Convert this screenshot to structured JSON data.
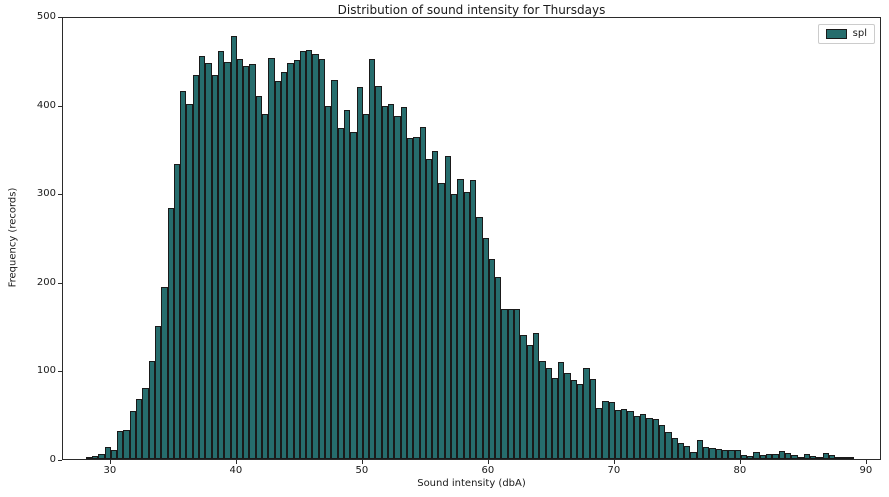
{
  "figure": {
    "background": "#ffffff"
  },
  "chart_data": {
    "type": "bar",
    "subtype": "histogram",
    "title": "Distribution of sound intensity for Thursdays",
    "xlabel": "Sound intensity (dbA)",
    "ylabel": "Frequency (records)",
    "legend": {
      "label": "spl",
      "position": "upper right"
    },
    "bar_color": "#266d6d",
    "bar_edge_color": "#1a1a1a",
    "grid": false,
    "xlim": [
      26.2,
      91.2
    ],
    "ylim": [
      0,
      500
    ],
    "x_ticks": [
      30,
      40,
      50,
      60,
      70,
      80,
      90
    ],
    "y_ticks": [
      0,
      100,
      200,
      300,
      400,
      500
    ],
    "bin_start": 28.0,
    "bin_width": 0.5,
    "values": [
      2,
      3,
      6,
      14,
      10,
      32,
      33,
      54,
      68,
      80,
      111,
      150,
      194,
      283,
      333,
      415,
      401,
      433,
      455,
      447,
      433,
      460,
      448,
      478,
      452,
      444,
      446,
      410,
      389,
      453,
      427,
      437,
      447,
      450,
      460,
      462,
      457,
      451,
      399,
      428,
      374,
      394,
      369,
      420,
      389,
      452,
      421,
      399,
      401,
      387,
      397,
      362,
      364,
      375,
      339,
      348,
      312,
      342,
      299,
      316,
      301,
      315,
      273,
      250,
      226,
      205,
      169,
      169,
      169,
      140,
      129,
      142,
      111,
      103,
      92,
      109,
      97,
      89,
      85,
      103,
      90,
      58,
      66,
      64,
      55,
      56,
      54,
      49,
      51,
      46,
      45,
      38,
      31,
      24,
      18,
      15,
      8,
      21,
      13,
      12,
      11,
      10,
      10,
      10,
      5,
      3,
      8,
      5,
      6,
      6,
      9,
      7,
      4,
      1,
      6,
      3,
      1,
      7,
      4,
      2,
      1,
      1
    ]
  }
}
